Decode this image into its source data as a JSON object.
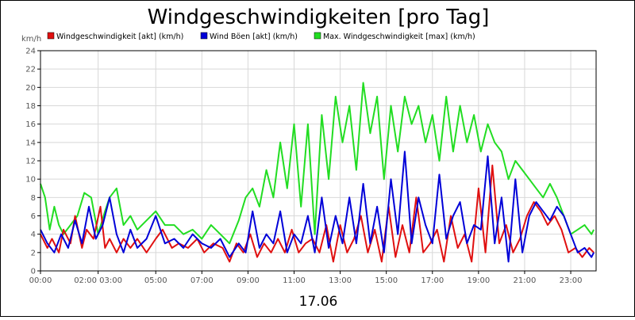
{
  "chart_data": {
    "type": "line",
    "title": "Windgeschwindigkeiten [pro Tag]",
    "ylabel": "km/h",
    "xlabel": "17.06",
    "ylim": [
      0,
      24
    ],
    "y_ticks": [
      0,
      2,
      4,
      6,
      8,
      10,
      12,
      14,
      16,
      18,
      20,
      22,
      24
    ],
    "x_ticks": [
      {
        "label": "00:00",
        "h": 0
      },
      {
        "label": "02:00 03:00",
        "h": 2.5
      },
      {
        "label": "05:00",
        "h": 5
      },
      {
        "label": "07:00",
        "h": 7
      },
      {
        "label": "09:00",
        "h": 9
      },
      {
        "label": "11:00",
        "h": 11
      },
      {
        "label": "13:00",
        "h": 13
      },
      {
        "label": "15:00",
        "h": 15
      },
      {
        "label": "17:00",
        "h": 17
      },
      {
        "label": "19:00",
        "h": 19
      },
      {
        "label": "21:00",
        "h": 21
      },
      {
        "label": "23:00",
        "h": 23
      }
    ],
    "xlim_hours": [
      0,
      24.1
    ],
    "grid": true,
    "legend_position": "top",
    "series": [
      {
        "name": "Windgeschwindigkeit [akt] (km/h)",
        "color": "#e01010",
        "x": [
          0.0,
          0.3,
          0.5,
          0.8,
          1.0,
          1.3,
          1.5,
          1.8,
          2.0,
          2.3,
          2.6,
          2.8,
          3.0,
          3.3,
          3.6,
          3.9,
          4.2,
          4.6,
          5.0,
          5.3,
          5.7,
          6.0,
          6.4,
          6.8,
          7.1,
          7.5,
          7.9,
          8.2,
          8.5,
          8.8,
          9.1,
          9.4,
          9.7,
          10.0,
          10.3,
          10.6,
          10.9,
          11.2,
          11.5,
          11.8,
          12.1,
          12.4,
          12.7,
          13.0,
          13.3,
          13.6,
          13.9,
          14.2,
          14.5,
          14.8,
          15.1,
          15.4,
          15.7,
          16.0,
          16.3,
          16.6,
          16.9,
          17.2,
          17.5,
          17.8,
          18.1,
          18.4,
          18.7,
          19.0,
          19.3,
          19.6,
          19.9,
          20.2,
          20.5,
          20.8,
          21.1,
          21.4,
          21.7,
          22.0,
          22.3,
          22.6,
          22.9,
          23.2,
          23.5,
          23.8,
          24.0
        ],
        "values": [
          4,
          2.5,
          3.5,
          2,
          4.5,
          3,
          6,
          2.5,
          4.5,
          3.5,
          7,
          2.5,
          3.5,
          2,
          3.5,
          2.5,
          3.5,
          2,
          3.5,
          4.5,
          2.5,
          3,
          2.5,
          3.5,
          2,
          3,
          2.5,
          1,
          3,
          2,
          4,
          1.5,
          3,
          2,
          3.5,
          2,
          4.5,
          2,
          3,
          3.5,
          2,
          5,
          1,
          5,
          2,
          3.5,
          6,
          2,
          4.5,
          1,
          7,
          1.5,
          5,
          2,
          8,
          2,
          3,
          4.5,
          1,
          6,
          2.5,
          4,
          1,
          9,
          2,
          11.5,
          3,
          5,
          2,
          3.5,
          6,
          7.5,
          6.5,
          5,
          6,
          4.5,
          2,
          2.5,
          1.5,
          2.5,
          2
        ]
      },
      {
        "name": "Wind Böen [akt] (km/h)",
        "color": "#0000d8",
        "x": [
          0.0,
          0.3,
          0.6,
          0.9,
          1.2,
          1.5,
          1.8,
          2.1,
          2.4,
          2.7,
          3.0,
          3.3,
          3.6,
          3.9,
          4.2,
          4.6,
          5.0,
          5.4,
          5.8,
          6.2,
          6.6,
          7.0,
          7.4,
          7.8,
          8.2,
          8.6,
          8.9,
          9.2,
          9.5,
          9.8,
          10.1,
          10.4,
          10.7,
          11.0,
          11.3,
          11.6,
          11.9,
          12.2,
          12.5,
          12.8,
          13.1,
          13.4,
          13.7,
          14.0,
          14.3,
          14.6,
          14.9,
          15.2,
          15.5,
          15.8,
          16.1,
          16.4,
          16.7,
          17.0,
          17.3,
          17.6,
          17.9,
          18.2,
          18.5,
          18.8,
          19.1,
          19.4,
          19.7,
          20.0,
          20.3,
          20.6,
          20.9,
          21.2,
          21.5,
          21.8,
          22.1,
          22.4,
          22.7,
          23.0,
          23.3,
          23.6,
          23.9,
          24.0
        ],
        "values": [
          4.5,
          3,
          2,
          4,
          2.5,
          5.5,
          3,
          7,
          3.5,
          5,
          8,
          4,
          2,
          4.5,
          2.5,
          3.5,
          6,
          3,
          3.5,
          2.5,
          4,
          3,
          2.5,
          3.5,
          1.5,
          3,
          2,
          6.5,
          2.5,
          4,
          3,
          6.5,
          2,
          4,
          3,
          6,
          2,
          8,
          2.5,
          6,
          3,
          8,
          3,
          9.5,
          3,
          7,
          2,
          10,
          4,
          13,
          3,
          8,
          5,
          3,
          10.5,
          3.5,
          6,
          7.5,
          3,
          5,
          4.5,
          12.5,
          3,
          8,
          1,
          10,
          2,
          6,
          7.5,
          6.5,
          5.5,
          7,
          6,
          4,
          2,
          2.5,
          1.5,
          2
        ]
      },
      {
        "name": "Max. Windgeschwindigkeit [max] (km/h)",
        "color": "#22dd22",
        "x": [
          0.0,
          0.2,
          0.4,
          0.6,
          0.8,
          1.0,
          1.3,
          1.6,
          1.9,
          2.2,
          2.5,
          2.8,
          3.0,
          3.3,
          3.6,
          3.9,
          4.2,
          4.6,
          5.0,
          5.4,
          5.8,
          6.2,
          6.6,
          7.0,
          7.4,
          7.8,
          8.2,
          8.6,
          8.9,
          9.2,
          9.5,
          9.8,
          10.1,
          10.4,
          10.7,
          11.0,
          11.3,
          11.6,
          11.9,
          12.2,
          12.5,
          12.8,
          13.1,
          13.4,
          13.7,
          14.0,
          14.3,
          14.6,
          14.9,
          15.2,
          15.5,
          15.8,
          16.1,
          16.4,
          16.7,
          17.0,
          17.3,
          17.6,
          17.9,
          18.2,
          18.5,
          18.8,
          19.1,
          19.4,
          19.7,
          20.0,
          20.3,
          20.6,
          20.9,
          21.2,
          21.5,
          21.8,
          22.1,
          22.4,
          22.7,
          23.0,
          23.3,
          23.6,
          23.9,
          24.0
        ],
        "values": [
          9.5,
          8,
          4.5,
          7,
          5,
          4,
          5,
          6,
          8.5,
          8,
          4,
          6.5,
          8,
          9,
          5,
          6,
          4.5,
          5.5,
          6.5,
          5,
          5,
          4,
          4.5,
          3.5,
          5,
          4,
          3,
          5.5,
          8,
          9,
          7,
          11,
          8,
          14,
          9,
          16,
          7,
          16,
          4,
          17,
          10,
          19,
          14,
          18,
          11,
          20.5,
          15,
          19,
          10,
          18,
          13,
          19,
          16,
          18,
          14,
          17,
          12,
          19,
          13,
          18,
          14,
          17,
          13,
          16,
          14,
          13,
          10,
          12,
          11,
          10,
          9,
          8,
          9.5,
          8,
          6,
          4,
          4.5,
          5,
          4,
          4.5
        ]
      }
    ]
  }
}
